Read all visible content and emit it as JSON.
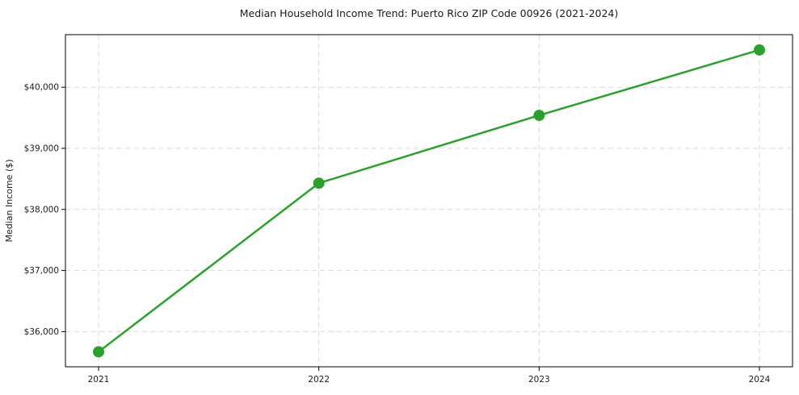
{
  "chart_data": {
    "type": "line",
    "title": "Median Household Income Trend: Puerto Rico ZIP Code 00926 (2021-2024)",
    "xlabel": "",
    "ylabel": "Median Income ($)",
    "x": [
      2021,
      2022,
      2023,
      2024
    ],
    "xtick_labels": [
      "2021",
      "2022",
      "2023",
      "2024"
    ],
    "series": [
      {
        "name": "Median Household Income",
        "values": [
          35670,
          38430,
          39540,
          40610
        ]
      }
    ],
    "ylim": [
      35425,
      40860
    ],
    "yticks": [
      36000,
      37000,
      38000,
      39000,
      40000
    ],
    "ytick_labels": [
      "$36,000",
      "$37,000",
      "$38,000",
      "$39,000",
      "$40,000"
    ],
    "grid": true,
    "legend_position": "none",
    "colors": {
      "line": "#2ca02c",
      "marker": "#2ca02c",
      "grid": "#d9d9d9",
      "spine": "#000000",
      "text": "#1a1a1a",
      "background": "#ffffff"
    }
  }
}
